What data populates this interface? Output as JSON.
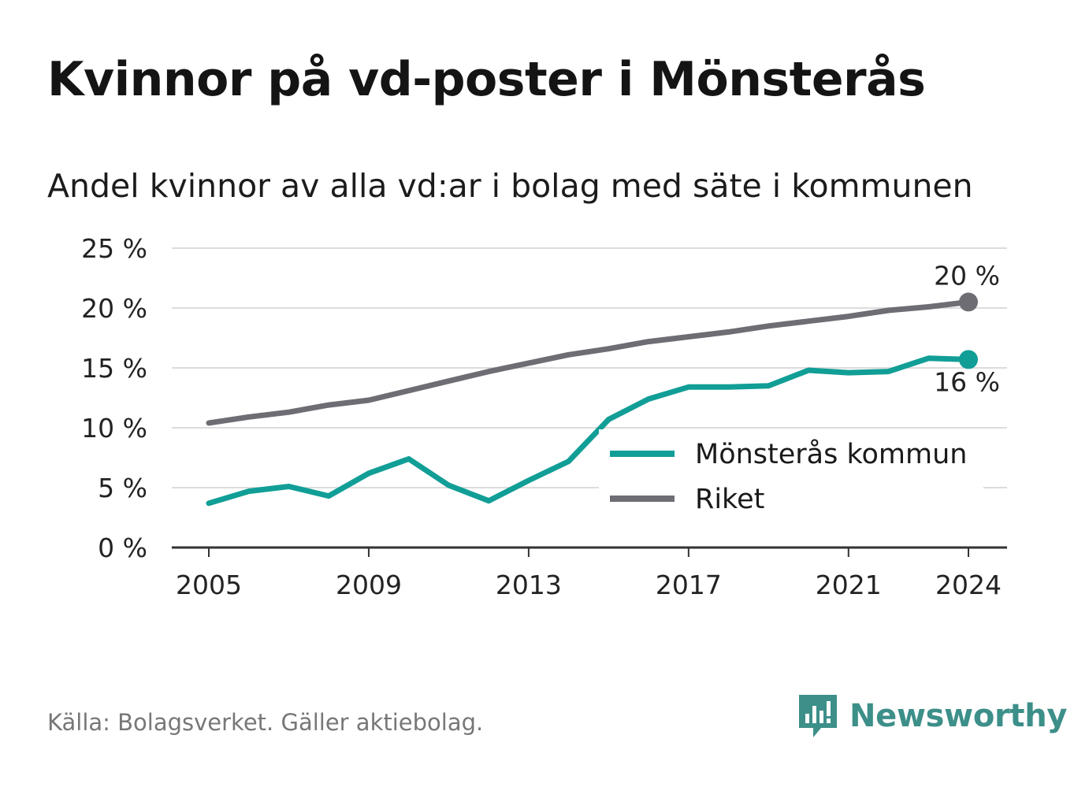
{
  "header": {
    "title": "Kvinnor på vd-poster i Mönsterås",
    "subtitle": "Andel kvinnor av alla vd:ar i bolag med säte i kommunen"
  },
  "footer": {
    "source": "Källa: Bolagsverket. Gäller aktiebolag.",
    "brand": "Newsworthy",
    "brand_color": "#3d8f89"
  },
  "chart_data": {
    "type": "line",
    "title": "",
    "xlabel": "",
    "ylabel": "",
    "x": [
      2005,
      2006,
      2007,
      2008,
      2009,
      2010,
      2011,
      2012,
      2013,
      2014,
      2015,
      2016,
      2017,
      2018,
      2019,
      2020,
      2021,
      2022,
      2023,
      2024
    ],
    "x_ticks": [
      2005,
      2009,
      2013,
      2017,
      2021,
      2024
    ],
    "x_tick_labels": [
      "2005",
      "2009",
      "2013",
      "2017",
      "2021",
      "2024"
    ],
    "ylim": [
      0,
      25
    ],
    "y_ticks": [
      0,
      5,
      10,
      15,
      20,
      25
    ],
    "y_tick_labels": [
      "0 %",
      "5 %",
      "10 %",
      "15 %",
      "20 %",
      "25 %"
    ],
    "grid": true,
    "legend_position": "bottom-right",
    "series": [
      {
        "name": "Mönsterås kommun",
        "color": "#119e96",
        "values": [
          3.7,
          4.7,
          5.1,
          4.3,
          6.2,
          7.4,
          5.2,
          3.9,
          5.6,
          7.2,
          10.7,
          12.4,
          13.4,
          13.4,
          13.5,
          14.8,
          14.6,
          14.7,
          15.8,
          15.7
        ],
        "end_label": "16 %"
      },
      {
        "name": "Riket",
        "color": "#6e6d74",
        "values": [
          10.4,
          10.9,
          11.3,
          11.9,
          12.3,
          13.1,
          13.9,
          14.7,
          15.4,
          16.1,
          16.6,
          17.2,
          17.6,
          18.0,
          18.5,
          18.9,
          19.3,
          19.8,
          20.1,
          20.5
        ],
        "end_label": "20 %"
      }
    ]
  }
}
